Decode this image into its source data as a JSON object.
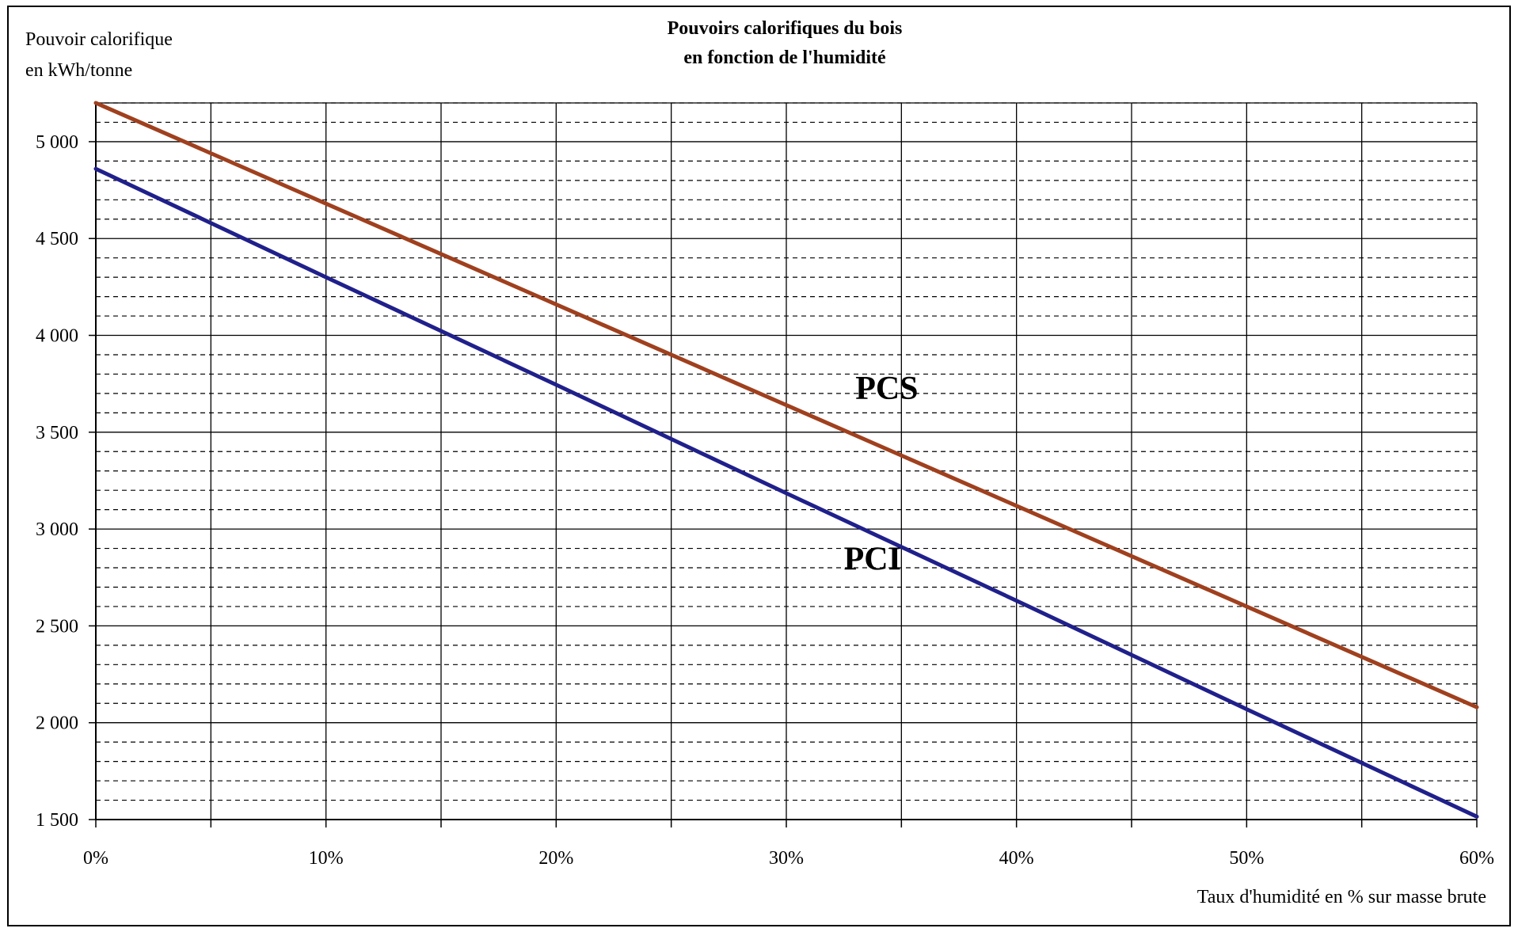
{
  "chart_data": {
    "type": "line",
    "title_lines": [
      "Pouvoirs calorifiques du bois",
      "en fonction de l'humidité"
    ],
    "ylabel_lines": [
      "Pouvoir calorifique",
      "en kWh/tonne"
    ],
    "xlabel": "Taux d'humidité en % sur masse brute",
    "xlim": [
      0,
      60
    ],
    "ylim": [
      1500,
      5200
    ],
    "x_ticks": [
      0,
      10,
      20,
      30,
      40,
      50,
      60
    ],
    "x_tick_labels": [
      "0%",
      "10%",
      "20%",
      "30%",
      "40%",
      "50%",
      "60%"
    ],
    "x_minor_step": 5,
    "y_ticks": [
      1500,
      2000,
      2500,
      3000,
      3500,
      4000,
      4500,
      5000
    ],
    "y_tick_labels": [
      "1 500",
      "2 000",
      "2 500",
      "3 000",
      "3 500",
      "4 000",
      "4 500",
      "5 000"
    ],
    "y_minor_step": 100,
    "grid": true,
    "legend": "none",
    "series": [
      {
        "name": "PCS",
        "color": "#A0401E",
        "x": [
          0,
          10,
          20,
          30,
          40,
          50,
          60
        ],
        "values": [
          5200,
          4680,
          4160,
          3640,
          3120,
          2600,
          2080
        ],
        "label_anchor": [
          33,
          3670
        ]
      },
      {
        "name": "PCI",
        "color": "#20208C",
        "x": [
          0,
          10,
          20,
          30,
          40,
          50,
          60
        ],
        "values": [
          4860,
          4300,
          3745,
          3185,
          2630,
          2070,
          1515
        ],
        "label_anchor": [
          32.5,
          2790
        ]
      }
    ]
  }
}
